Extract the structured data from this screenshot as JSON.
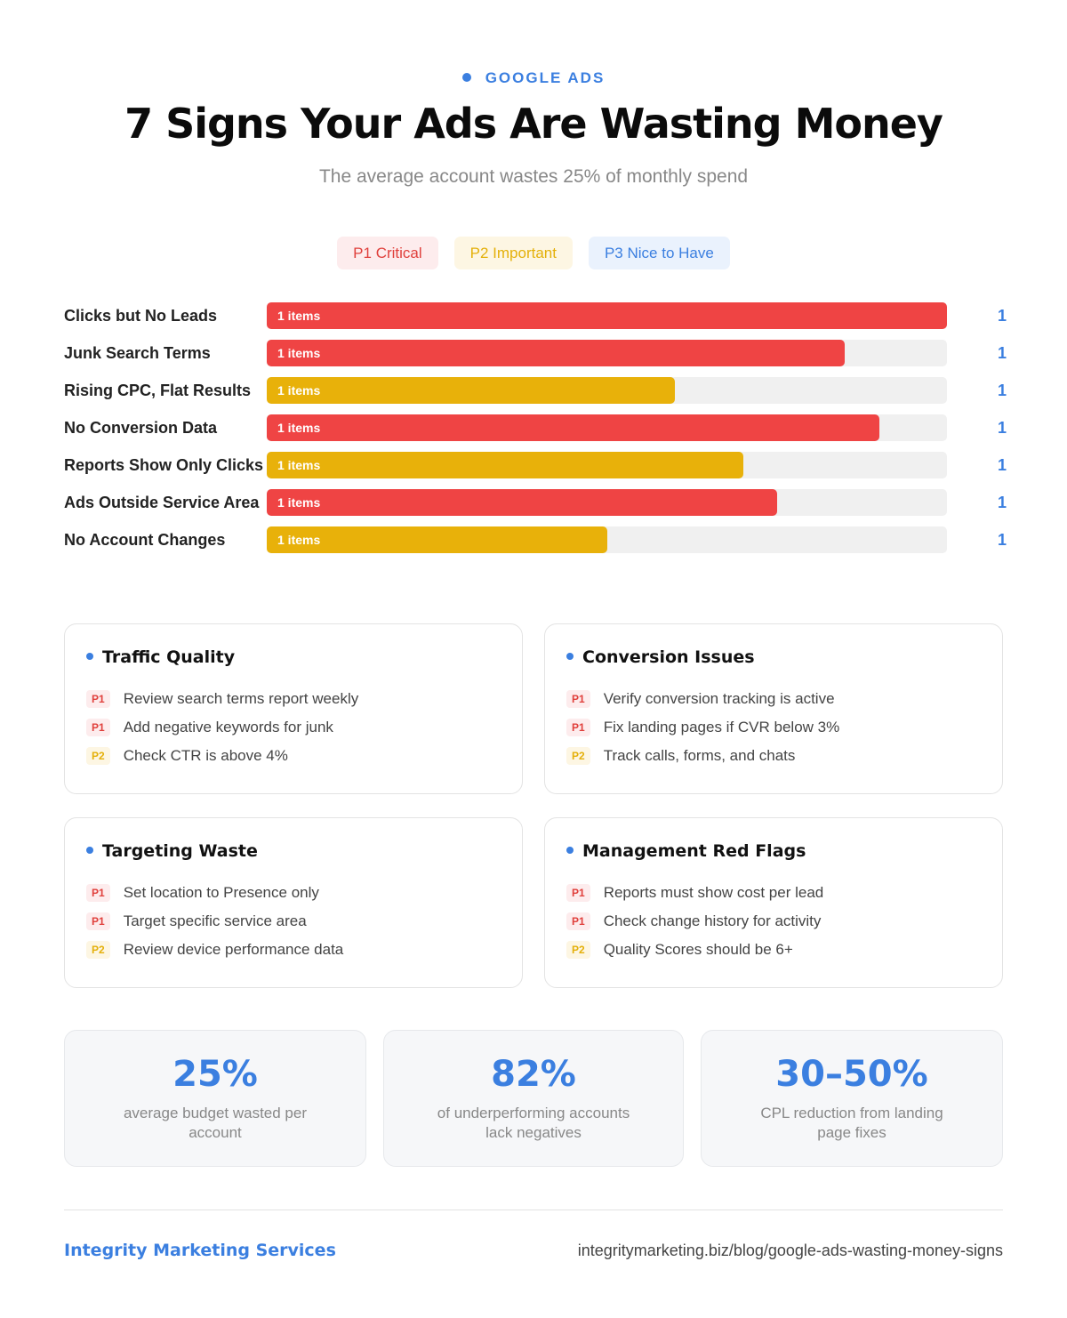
{
  "header": {
    "eyebrow": "GOOGLE ADS",
    "title": "7 Signs Your Ads Are Wasting Money",
    "subtitle": "The average account wastes 25% of monthly spend"
  },
  "legend": [
    {
      "label": "P1 Critical",
      "color": "#e0403c",
      "bg": "#fdeced"
    },
    {
      "label": "P2 Important",
      "color": "#e4b00a",
      "bg": "#fdf6e3"
    },
    {
      "label": "P3 Nice to Have",
      "color": "#3b7fe0",
      "bg": "#eaf2fd"
    }
  ],
  "chart_data": {
    "type": "bar",
    "orientation": "horizontal",
    "categories": [
      "Clicks but No Leads",
      "Junk Search Terms",
      "Rising CPC, Flat Results",
      "No Conversion Data",
      "Reports Show Only Clicks",
      "Ads Outside Service Area",
      "No Account Changes"
    ],
    "values": [
      100,
      85,
      60,
      90,
      70,
      75,
      50
    ],
    "xlim": [
      0,
      100
    ],
    "colors": [
      "#ef4444",
      "#ef4444",
      "#e8b10a",
      "#ef4444",
      "#e8b10a",
      "#ef4444",
      "#e8b10a"
    ],
    "bar_labels": [
      "1 items",
      "1 items",
      "1 items",
      "1 items",
      "1 items",
      "1 items",
      "1 items"
    ],
    "counts": [
      1,
      1,
      1,
      1,
      1,
      1,
      1
    ]
  },
  "cards": [
    {
      "title": "Traffic Quality",
      "items": [
        {
          "tag": "P1",
          "text": "Review search terms report weekly"
        },
        {
          "tag": "P1",
          "text": "Add negative keywords for junk"
        },
        {
          "tag": "P2",
          "text": "Check CTR is above 4%"
        }
      ]
    },
    {
      "title": "Conversion Issues",
      "items": [
        {
          "tag": "P1",
          "text": "Verify conversion tracking is active"
        },
        {
          "tag": "P1",
          "text": "Fix landing pages if CVR below 3%"
        },
        {
          "tag": "P2",
          "text": "Track calls, forms, and chats"
        }
      ]
    },
    {
      "title": "Targeting Waste",
      "items": [
        {
          "tag": "P1",
          "text": "Set location to Presence only"
        },
        {
          "tag": "P1",
          "text": "Target specific service area"
        },
        {
          "tag": "P2",
          "text": "Review device performance data"
        }
      ]
    },
    {
      "title": "Management Red Flags",
      "items": [
        {
          "tag": "P1",
          "text": "Reports must show cost per lead"
        },
        {
          "tag": "P1",
          "text": "Check change history for activity"
        },
        {
          "tag": "P2",
          "text": "Quality Scores should be 6+"
        }
      ]
    }
  ],
  "stats": [
    {
      "value": "25%",
      "label": "average budget wasted per account"
    },
    {
      "value": "82%",
      "label": "of underperforming accounts lack negatives"
    },
    {
      "value": "30–50%",
      "label": "CPL reduction from landing page fixes"
    }
  ],
  "footer": {
    "brand": "Integrity Marketing Services",
    "url": "integritymarketing.biz/blog/google-ads-wasting-money-signs"
  }
}
